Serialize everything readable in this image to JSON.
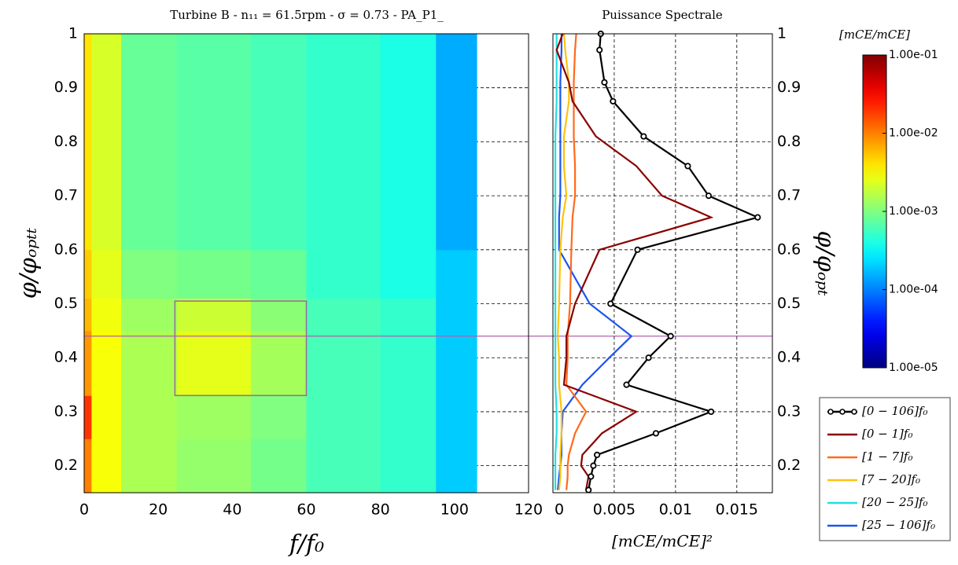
{
  "chart_data": [
    {
      "type": "heatmap",
      "title": "Turbine B - n₁₁ = 61.5rpm - σ = 0.73 - PA_P1_",
      "x_label": "f/f₀",
      "y_label": "φ/φₒₚₜₜ",
      "xlim": [
        0,
        120
      ],
      "xticks": [
        0,
        20,
        40,
        60,
        80,
        100,
        120
      ],
      "ylim": [
        0.15,
        1
      ],
      "yticks": [
        0.2,
        0.3,
        0.4,
        0.5,
        0.6,
        0.7,
        0.8,
        0.9,
        1
      ],
      "grid": "y",
      "x_bins": [
        0,
        2,
        10,
        25,
        45,
        60,
        80,
        95,
        106
      ],
      "y_bins": [
        0.15,
        0.25,
        0.33,
        0.45,
        0.51,
        0.6,
        0.8,
        1
      ],
      "z": [
        [
          0.01,
          0.003,
          0.0015,
          0.0012,
          0.0009,
          0.0006,
          0.0005,
          0.0002
        ],
        [
          0.02,
          0.003,
          0.0015,
          0.0013,
          0.001,
          0.0006,
          0.0005,
          0.0002
        ],
        [
          0.008,
          0.003,
          0.0015,
          0.0025,
          0.0014,
          0.0006,
          0.0005,
          0.0002
        ],
        [
          0.006,
          0.0028,
          0.0013,
          0.002,
          0.0011,
          0.0006,
          0.0005,
          0.0002
        ],
        [
          0.005,
          0.0025,
          0.001,
          0.0009,
          0.0008,
          0.0005,
          0.0004,
          0.0002
        ],
        [
          0.004,
          0.0022,
          0.0008,
          0.0007,
          0.0006,
          0.0005,
          0.0004,
          0.00015
        ],
        [
          0.004,
          0.0022,
          0.0008,
          0.0007,
          0.0006,
          0.0005,
          0.0004,
          0.00015
        ]
      ],
      "box": {
        "x": [
          24.5,
          60
        ],
        "y": [
          0.33,
          0.505
        ],
        "color": "#9a6a9a"
      },
      "hline": {
        "value": 0.44,
        "color": "#b060b0"
      },
      "colorbar": {
        "label": "[mCE/mCE]",
        "log": true,
        "colormap": "jet",
        "lim": [
          1e-05,
          0.1
        ],
        "ticks": [
          {
            "value": 0.1,
            "label": "1.00e-01"
          },
          {
            "value": 0.01,
            "label": "1.00e-02"
          },
          {
            "value": 0.001,
            "label": "1.00e-03"
          },
          {
            "value": 0.0001,
            "label": "1.00e-04"
          },
          {
            "value": 1e-05,
            "label": "1.00e-05"
          }
        ]
      }
    },
    {
      "type": "line",
      "title": "Puissance Spectrale",
      "x_label": "[mCE/mCE]²",
      "y_label": "φ/φₒₚₜ",
      "xlim": [
        0,
        0.0179
      ],
      "xticks": [
        0,
        0.005,
        0.01,
        0.015
      ],
      "ylim": [
        0.15,
        1
      ],
      "yticks": [
        0.2,
        0.3,
        0.4,
        0.5,
        0.6,
        0.7,
        0.8,
        0.9,
        1
      ],
      "grid": true,
      "legend": "right",
      "y": [
        0.155,
        0.18,
        0.2,
        0.22,
        0.26,
        0.3,
        0.35,
        0.4,
        0.44,
        0.5,
        0.6,
        0.66,
        0.7,
        0.755,
        0.81,
        0.875,
        0.91,
        0.97,
        1
      ],
      "series": [
        {
          "name": "[0 − 106]f₀",
          "color": "#000000",
          "marker": true,
          "values": [
            0.0029,
            0.0031,
            0.0033,
            0.0036,
            0.0084,
            0.0129,
            0.006,
            0.0078,
            0.0096,
            0.0047,
            0.0069,
            0.0167,
            0.0127,
            0.011,
            0.0074,
            0.0049,
            0.0042,
            0.0038,
            0.0039
          ]
        },
        {
          "name": "[0 − 1]f₀",
          "color": "#8b0000",
          "values": [
            0.0027,
            0.0029,
            0.0023,
            0.0024,
            0.004,
            0.0068,
            0.0009,
            0.0011,
            0.0011,
            0.0018,
            0.0038,
            0.0129,
            0.0089,
            0.0068,
            0.0035,
            0.0016,
            0.0013,
            0.0003,
            0.0008
          ]
        },
        {
          "name": "[1 − 7]f₀",
          "color": "#ff6a1a",
          "values": [
            0.0011,
            0.0012,
            0.0012,
            0.0013,
            0.0018,
            0.0027,
            0.0011,
            0.0012,
            0.0012,
            0.0014,
            0.0015,
            0.0016,
            0.0018,
            0.0018,
            0.0017,
            0.0017,
            0.0017,
            0.0018,
            0.0019
          ]
        },
        {
          "name": "[7 − 20]f₀",
          "color": "#ffc20e",
          "values": [
            0.0005,
            0.0006,
            0.0006,
            0.0006,
            0.0007,
            0.0007,
            0.0005,
            0.0005,
            0.0004,
            0.0005,
            0.0006,
            0.0008,
            0.0011,
            0.0009,
            0.0009,
            0.0013,
            0.0013,
            0.001,
            0.0009
          ]
        },
        {
          "name": "[20 − 25]f₀",
          "color": "#22e0e0",
          "values": [
            0.0002,
            0.0002,
            0.0002,
            0.0002,
            0.0003,
            0.0003,
            0.0002,
            0.0002,
            0.0002,
            0.0002,
            0.0002,
            0.0002,
            0.0002,
            0.0002,
            0.0002,
            0.0003,
            0.0003,
            0.0003,
            0.0003
          ]
        },
        {
          "name": "[25 − 106]f₀",
          "color": "#1a55ee",
          "values": [
            0.0004,
            0.0005,
            0.0006,
            0.0007,
            0.0007,
            0.0008,
            0.0024,
            0.0046,
            0.0064,
            0.003,
            0.0005,
            0.0005,
            0.0006,
            0.0006,
            0.0006,
            0.0006,
            0.0006,
            0.0007,
            0.0007
          ]
        }
      ]
    }
  ]
}
